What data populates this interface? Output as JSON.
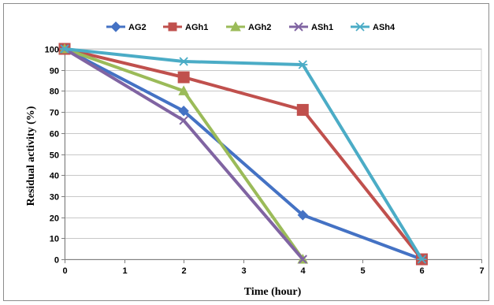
{
  "chart_data": {
    "type": "line",
    "title": "",
    "xlabel": "Time (hour)",
    "ylabel": "Residual activity (%)",
    "xlim": [
      0,
      7
    ],
    "ylim": [
      0,
      100
    ],
    "xticks": [
      0,
      1,
      2,
      3,
      4,
      5,
      6,
      7
    ],
    "yticks": [
      0,
      10,
      20,
      30,
      40,
      50,
      60,
      70,
      80,
      90,
      100
    ],
    "grid": "horizontal",
    "legend_position": "top",
    "series": [
      {
        "name": "AG2",
        "color": "#4472C4",
        "marker": "diamond",
        "x": [
          0,
          2,
          4,
          6
        ],
        "y": [
          100,
          70.5,
          21,
          0
        ]
      },
      {
        "name": "AGh1",
        "color": "#C0504D",
        "marker": "square",
        "x": [
          0,
          2,
          4,
          6
        ],
        "y": [
          100,
          86.5,
          71,
          0
        ]
      },
      {
        "name": "AGh2",
        "color": "#9BBB59",
        "marker": "triangle",
        "x": [
          0,
          2,
          4
        ],
        "y": [
          100,
          80,
          0
        ]
      },
      {
        "name": "ASh1",
        "color": "#8064A2",
        "marker": "x",
        "x": [
          0,
          2,
          4
        ],
        "y": [
          100,
          66,
          0
        ]
      },
      {
        "name": "ASh4",
        "color": "#4BACC6",
        "marker": "star",
        "x": [
          0,
          2,
          4,
          6
        ],
        "y": [
          100,
          94,
          92.5,
          0
        ]
      }
    ]
  }
}
